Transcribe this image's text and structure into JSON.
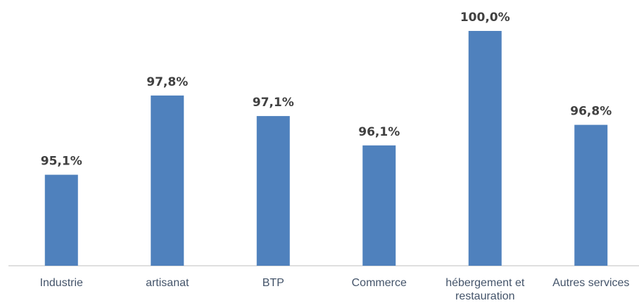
{
  "chart_data": {
    "type": "bar",
    "categories": [
      "Industrie",
      "artisanat",
      "BTP",
      "Commerce",
      "hébergement et restauration",
      "Autres services"
    ],
    "values": [
      95.1,
      97.8,
      97.1,
      96.1,
      100,
      96.8
    ],
    "value_labels": [
      "95,1%",
      "97,8%",
      "97,1%",
      "96,1%",
      "100,0%",
      "96,8%"
    ],
    "color": "#4f81bd",
    "ylim": [
      92,
      100
    ]
  }
}
